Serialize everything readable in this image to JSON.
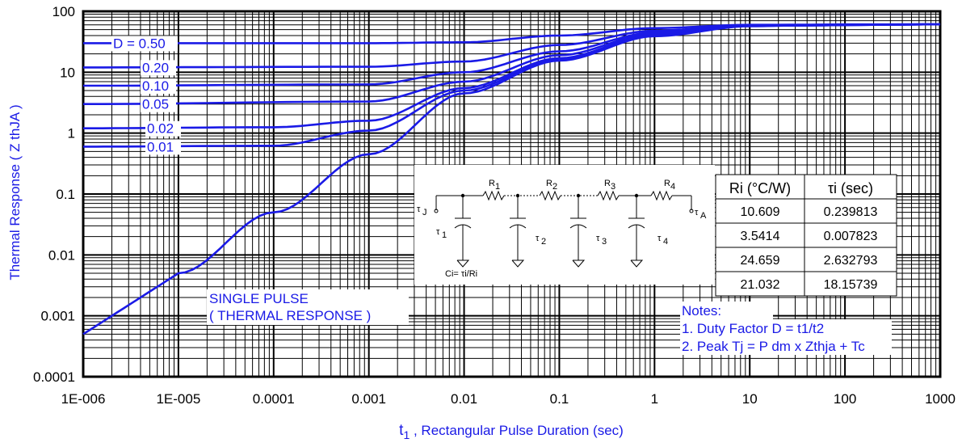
{
  "chart_data": {
    "type": "line",
    "xscale": "log",
    "yscale": "log",
    "xlim": [
      1e-06,
      1000
    ],
    "ylim": [
      0.0001,
      100
    ],
    "x_ticks": [
      "1E-006",
      "1E-005",
      "0.0001",
      "0.001",
      "0.01",
      "0.1",
      "1",
      "10",
      "100",
      "1000"
    ],
    "y_ticks": [
      "100",
      "10",
      "1",
      "0.1",
      "0.01",
      "0.001",
      "0.0001"
    ],
    "xlabel_main": "t",
    "xlabel_sub": "1",
    "xlabel_rest": " , Rectangular Pulse Duration (sec)",
    "ylabel": "Thermal Response ( Z thJA )",
    "grid": true,
    "series": [
      {
        "name": "D = 0.50",
        "label_text": "D = 0.50",
        "color": "#1a1ae6",
        "points": [
          [
            1e-06,
            30
          ],
          [
            0.001,
            30
          ],
          [
            0.01,
            31
          ],
          [
            0.1,
            40
          ],
          [
            1,
            53
          ],
          [
            10,
            60
          ],
          [
            1000,
            61
          ]
        ]
      },
      {
        "name": "0.20",
        "label_text": "0.20",
        "color": "#1a1ae6",
        "points": [
          [
            1e-06,
            12
          ],
          [
            0.001,
            12.3
          ],
          [
            0.01,
            15
          ],
          [
            0.1,
            28
          ],
          [
            1,
            48
          ],
          [
            10,
            59
          ],
          [
            1000,
            61
          ]
        ]
      },
      {
        "name": "0.10",
        "label_text": "0.10",
        "color": "#1a1ae6",
        "points": [
          [
            1e-06,
            6
          ],
          [
            0.001,
            6.3
          ],
          [
            0.01,
            10
          ],
          [
            0.1,
            22
          ],
          [
            1,
            45
          ],
          [
            10,
            58
          ],
          [
            1000,
            61
          ]
        ]
      },
      {
        "name": "0.05",
        "label_text": "0.05",
        "color": "#1a1ae6",
        "points": [
          [
            1e-06,
            3
          ],
          [
            0.001,
            3.3
          ],
          [
            0.01,
            7
          ],
          [
            0.1,
            19
          ],
          [
            1,
            43
          ],
          [
            10,
            58
          ],
          [
            1000,
            61
          ]
        ]
      },
      {
        "name": "0.02",
        "label_text": "0.02",
        "color": "#1a1ae6",
        "points": [
          [
            1e-06,
            1.2
          ],
          [
            0.0001,
            1.25
          ],
          [
            0.001,
            1.6
          ],
          [
            0.01,
            5.5
          ],
          [
            0.1,
            17
          ],
          [
            1,
            41
          ],
          [
            10,
            58
          ],
          [
            1000,
            61
          ]
        ]
      },
      {
        "name": "0.01",
        "label_text": "0.01",
        "color": "#1a1ae6",
        "points": [
          [
            1e-06,
            0.6
          ],
          [
            0.0001,
            0.62
          ],
          [
            0.001,
            1.1
          ],
          [
            0.01,
            5
          ],
          [
            0.1,
            16
          ],
          [
            1,
            40
          ],
          [
            10,
            58
          ],
          [
            1000,
            61
          ]
        ]
      },
      {
        "name": "SINGLE PULSE",
        "label_text": "",
        "color": "#1a1ae6",
        "points": [
          [
            1e-06,
            0.0005
          ],
          [
            1e-05,
            0.005
          ],
          [
            0.0001,
            0.05
          ],
          [
            0.001,
            0.45
          ],
          [
            0.01,
            4.5
          ],
          [
            0.1,
            15.5
          ],
          [
            1,
            39
          ],
          [
            10,
            57
          ],
          [
            100,
            61
          ],
          [
            1000,
            61
          ]
        ]
      }
    ],
    "annotations": {
      "single_pulse_line1": "SINGLE PULSE",
      "single_pulse_line2": "( THERMAL RESPONSE )",
      "notes_title": "Notes:",
      "note1": "1. Duty Factor D = t1/t2",
      "note2": "2. Peak Tj = P dm x Zthja + Tc"
    },
    "circuit": {
      "labels": [
        "R",
        "1",
        "R",
        "2",
        "R",
        "3",
        "R",
        "4",
        "τ",
        "J",
        "τ",
        "A",
        "τ",
        "1",
        "τ",
        "2",
        "τ",
        "3",
        "τ",
        "4"
      ],
      "ci_formula": "Ci= τi/Ri"
    },
    "table": {
      "headers": [
        "Ri (°C/W)",
        "τi (sec)"
      ],
      "rows": [
        [
          "10.609",
          "0.239813"
        ],
        [
          "3.5414",
          "0.007823"
        ],
        [
          "24.659",
          "2.632793"
        ],
        [
          "21.032",
          "18.15739"
        ]
      ]
    }
  }
}
